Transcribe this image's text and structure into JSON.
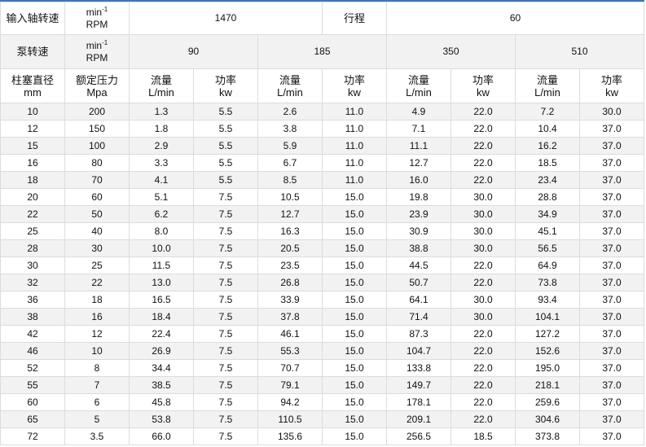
{
  "header": {
    "input_speed_label": "输入轴转速",
    "unit_top": "min",
    "unit_sup": "-1",
    "unit_bottom": "RPM",
    "input_speed_value": "1470",
    "stroke_label": "行程",
    "stroke_value": "60",
    "pump_speed_label": "泵转速",
    "pump_speeds": [
      "90",
      "185",
      "350",
      "510"
    ],
    "diameter_label": "柱塞直径",
    "diameter_unit": "mm",
    "pressure_label": "额定压力",
    "pressure_unit": "Mpa",
    "flow_label": "流量",
    "flow_unit": "L/min",
    "power_label": "功率",
    "power_unit": "kw"
  },
  "rows": [
    [
      "10",
      "200",
      "1.3",
      "5.5",
      "2.6",
      "11.0",
      "4.9",
      "22.0",
      "7.2",
      "30.0"
    ],
    [
      "12",
      "150",
      "1.8",
      "5.5",
      "3.8",
      "11.0",
      "7.1",
      "22.0",
      "10.4",
      "37.0"
    ],
    [
      "15",
      "100",
      "2.9",
      "5.5",
      "5.9",
      "11.0",
      "11.1",
      "22.0",
      "16.2",
      "37.0"
    ],
    [
      "16",
      "80",
      "3.3",
      "5.5",
      "6.7",
      "11.0",
      "12.7",
      "22.0",
      "18.5",
      "37.0"
    ],
    [
      "18",
      "70",
      "4.1",
      "5.5",
      "8.5",
      "11.0",
      "16.0",
      "22.0",
      "23.4",
      "37.0"
    ],
    [
      "20",
      "60",
      "5.1",
      "7.5",
      "10.5",
      "15.0",
      "19.8",
      "30.0",
      "28.8",
      "37.0"
    ],
    [
      "22",
      "50",
      "6.2",
      "7.5",
      "12.7",
      "15.0",
      "23.9",
      "30.0",
      "34.9",
      "37.0"
    ],
    [
      "25",
      "40",
      "8.0",
      "7.5",
      "16.3",
      "15.0",
      "30.9",
      "30.0",
      "45.1",
      "37.0"
    ],
    [
      "28",
      "30",
      "10.0",
      "7.5",
      "20.5",
      "15.0",
      "38.8",
      "30.0",
      "56.5",
      "37.0"
    ],
    [
      "30",
      "25",
      "11.5",
      "7.5",
      "23.5",
      "15.0",
      "44.5",
      "22.0",
      "64.9",
      "37.0"
    ],
    [
      "32",
      "22",
      "13.0",
      "7.5",
      "26.8",
      "15.0",
      "50.7",
      "22.0",
      "73.8",
      "37.0"
    ],
    [
      "36",
      "18",
      "16.5",
      "7.5",
      "33.9",
      "15.0",
      "64.1",
      "30.0",
      "93.4",
      "37.0"
    ],
    [
      "38",
      "16",
      "18.4",
      "7.5",
      "37.8",
      "15.0",
      "71.4",
      "30.0",
      "104.1",
      "37.0"
    ],
    [
      "42",
      "12",
      "22.4",
      "7.5",
      "46.1",
      "15.0",
      "87.3",
      "22.0",
      "127.2",
      "37.0"
    ],
    [
      "46",
      "10",
      "26.9",
      "7.5",
      "55.3",
      "15.0",
      "104.7",
      "22.0",
      "152.6",
      "37.0"
    ],
    [
      "52",
      "8",
      "34.4",
      "7.5",
      "70.7",
      "15.0",
      "133.8",
      "22.0",
      "195.0",
      "37.0"
    ],
    [
      "55",
      "7",
      "38.5",
      "7.5",
      "79.1",
      "15.0",
      "149.7",
      "22.0",
      "218.1",
      "37.0"
    ],
    [
      "60",
      "6",
      "45.8",
      "7.5",
      "94.2",
      "15.0",
      "178.1",
      "22.0",
      "259.6",
      "37.0"
    ],
    [
      "65",
      "5",
      "53.8",
      "7.5",
      "110.5",
      "15.0",
      "209.1",
      "22.0",
      "304.6",
      "37.0"
    ],
    [
      "72",
      "3.5",
      "66.0",
      "7.5",
      "135.6",
      "15.0",
      "256.5",
      "18.5",
      "373.8",
      "37.0"
    ]
  ]
}
